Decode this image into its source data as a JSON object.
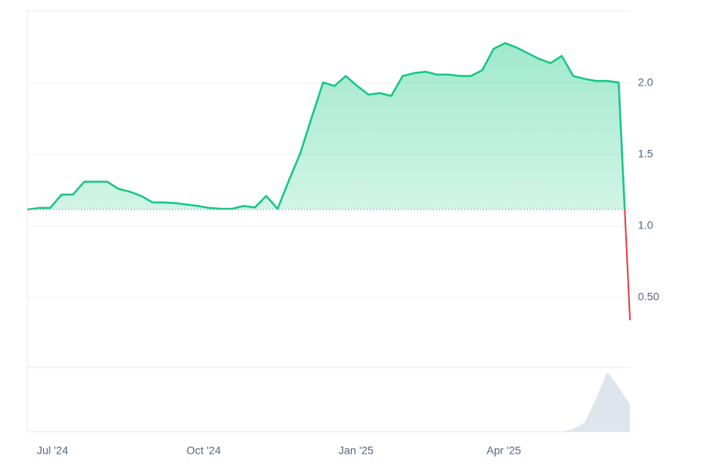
{
  "chart_data": {
    "type": "line",
    "series": [
      {
        "up_color": "#16c784",
        "down_color": "#ea3943",
        "values": [
          1.115,
          1.126,
          1.126,
          1.22,
          1.22,
          1.31,
          1.31,
          1.31,
          1.26,
          1.24,
          1.21,
          1.165,
          1.165,
          1.16,
          1.15,
          1.14,
          1.126,
          1.12,
          1.12,
          1.14,
          1.13,
          1.21,
          1.12,
          1.32,
          1.51,
          1.76,
          2.005,
          1.98,
          2.05,
          1.98,
          1.92,
          1.93,
          1.91,
          2.05,
          2.07,
          2.08,
          2.06,
          2.06,
          2.05,
          2.05,
          2.09,
          2.24,
          2.28,
          2.25,
          2.21,
          2.17,
          2.14,
          2.19,
          2.05,
          2.03,
          2.015,
          2.015,
          2.005,
          0.34
        ]
      }
    ],
    "baseline_value": 1.115,
    "volume": {
      "color": "#dfe5ec",
      "ylim": [
        0,
        1.05
      ],
      "values": [
        0,
        0,
        0,
        0,
        0,
        0,
        0,
        0,
        0,
        0,
        0,
        0,
        0,
        0,
        0,
        0,
        0,
        0,
        0,
        0,
        0,
        0,
        0,
        0,
        0,
        0,
        0,
        0,
        0,
        0,
        0,
        0,
        0,
        0,
        0,
        0,
        0,
        0,
        0,
        0,
        0,
        0,
        0,
        0,
        0,
        0,
        0,
        0,
        0.05,
        0.15,
        0.55,
        1,
        0.75,
        0.45
      ]
    },
    "xlim": [
      0,
      53
    ],
    "xticks": [
      {
        "value": 2.2,
        "label": "Jul '24"
      },
      {
        "value": 15.5,
        "label": "Oct '24"
      },
      {
        "value": 28.9,
        "label": "Jan '25"
      },
      {
        "value": 41.9,
        "label": "Apr '25"
      }
    ],
    "ylim": [
      0.01,
      2.505
    ],
    "yticks": [
      {
        "value": 0.5,
        "label": "0.50"
      },
      {
        "value": 1,
        "label": "1.0"
      },
      {
        "value": 1.5,
        "label": "1.5"
      },
      {
        "value": 2,
        "label": "2.0"
      }
    ],
    "grid": true
  }
}
